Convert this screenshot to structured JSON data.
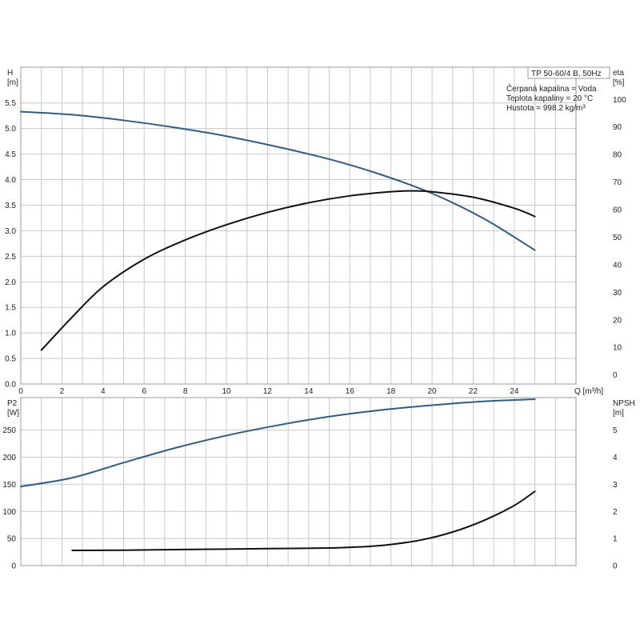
{
  "chart_data": [
    {
      "type": "line",
      "panel": "top",
      "title": "TP 50-60/4 B, 50Hz",
      "info_lines": [
        "Čerpaná kapalina = Voda",
        "Teplota kapaliny = 20 °C",
        "Hustota = 998.2 kg/m³"
      ],
      "xlabel": "Q [m³/h]",
      "ylabel_left": [
        "H",
        "[m]"
      ],
      "ylabel_right": [
        "eta",
        "[%]"
      ],
      "xlim": [
        0,
        27
      ],
      "ylim_left": [
        0,
        6.2
      ],
      "ylim_right": [
        -3.3,
        111.7
      ],
      "x_ticks": [
        "0",
        "2",
        "4",
        "6",
        "8",
        "10",
        "12",
        "14",
        "16",
        "18",
        "20",
        "22",
        "24"
      ],
      "y_left_ticks": [
        "0.0",
        "0.5",
        "1.0",
        "1.5",
        "2.0",
        "2.5",
        "3.0",
        "3.5",
        "4.0",
        "4.5",
        "5.0",
        "5.5"
      ],
      "y_right_ticks": [
        "0",
        "10",
        "20",
        "30",
        "40",
        "50",
        "60",
        "70",
        "80",
        "90",
        "100"
      ],
      "grid": true,
      "series": [
        {
          "axis": "left",
          "color": "#2b5d8a",
          "x": [
            0,
            2.5,
            5,
            7.5,
            10,
            12.5,
            15,
            17.5,
            20,
            22.5,
            25
          ],
          "values": [
            5.33,
            5.27,
            5.16,
            5.02,
            4.85,
            4.64,
            4.4,
            4.1,
            3.73,
            3.24,
            2.62
          ]
        },
        {
          "axis": "right",
          "color": "#111111",
          "x": [
            1,
            2.5,
            4,
            6,
            8,
            10,
            12,
            14,
            16,
            18,
            19,
            20,
            22,
            24,
            25
          ],
          "values": [
            9,
            21,
            32,
            42,
            49,
            54.5,
            59,
            62.5,
            65,
            66.5,
            66.8,
            66.5,
            64.5,
            60.5,
            57.5
          ]
        }
      ]
    },
    {
      "type": "line",
      "panel": "bottom",
      "xlim": [
        0,
        27
      ],
      "ylabel_left": [
        "P2",
        "[W]"
      ],
      "ylabel_right": [
        "NPSH",
        "[m]"
      ],
      "ylim_left": [
        0,
        310
      ],
      "ylim_right": [
        0,
        6.2
      ],
      "x_ticks": [
        "0",
        "2",
        "4",
        "6",
        "8",
        "10",
        "12",
        "14",
        "16",
        "18",
        "20",
        "22",
        "24"
      ],
      "y_left_ticks": [
        "0",
        "50",
        "100",
        "150",
        "200",
        "250"
      ],
      "y_right_ticks": [
        "0",
        "1",
        "2",
        "3",
        "4",
        "5"
      ],
      "grid": true,
      "series": [
        {
          "axis": "left",
          "color": "#2b5d8a",
          "x": [
            0,
            2.5,
            5,
            7.5,
            10,
            12.5,
            15,
            17.5,
            20,
            22.5,
            25
          ],
          "values": [
            146,
            162,
            190,
            217,
            240,
            259,
            275,
            287,
            296,
            303,
            307
          ]
        },
        {
          "axis": "right",
          "color": "#111111",
          "x": [
            2.5,
            5,
            7.5,
            10,
            12.5,
            15,
            16.5,
            18,
            19.5,
            21,
            22.5,
            24,
            25
          ],
          "values": [
            0.56,
            0.57,
            0.59,
            0.61,
            0.63,
            0.65,
            0.69,
            0.78,
            0.95,
            1.24,
            1.66,
            2.22,
            2.74
          ]
        }
      ]
    }
  ]
}
